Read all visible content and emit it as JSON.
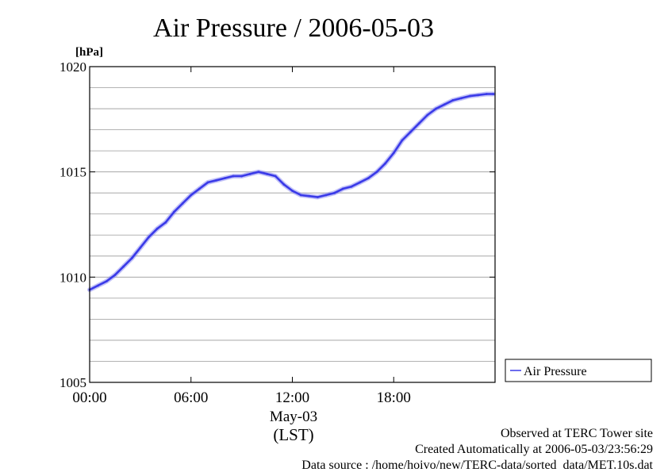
{
  "chart_data": {
    "type": "line",
    "title": "Air Pressure / 2006-05-03",
    "ylabel_unit": "[hPa]",
    "ylim": [
      1005,
      1020
    ],
    "yticks": [
      1005,
      1010,
      1015,
      1020
    ],
    "y_minor_step": 1,
    "xlim": [
      0,
      24
    ],
    "xticks": [
      0,
      6,
      12,
      18
    ],
    "xtick_labels": [
      "00:00",
      "06:00",
      "12:00",
      "18:00"
    ],
    "x_date_label": "May-03",
    "x_unit_label": "(LST)",
    "grid": true,
    "legend_position": "right",
    "series": [
      {
        "name": "Air Pressure",
        "color": "#3a3ae8",
        "x": [
          0,
          0.5,
          1,
          1.5,
          2,
          2.5,
          3,
          3.5,
          4,
          4.5,
          5,
          5.5,
          6,
          6.5,
          7,
          7.5,
          8,
          8.5,
          9,
          9.5,
          10,
          10.5,
          11,
          11.5,
          12,
          12.5,
          13,
          13.5,
          14,
          14.5,
          15,
          15.5,
          16,
          16.5,
          17,
          17.5,
          18,
          18.5,
          19,
          19.5,
          20,
          20.5,
          21,
          21.5,
          22,
          22.5,
          23,
          23.5,
          23.9
        ],
        "y": [
          1009.4,
          1009.6,
          1009.8,
          1010.1,
          1010.5,
          1010.9,
          1011.4,
          1011.9,
          1012.3,
          1012.6,
          1013.1,
          1013.5,
          1013.9,
          1014.2,
          1014.5,
          1014.6,
          1014.7,
          1014.8,
          1014.8,
          1014.9,
          1015.0,
          1014.9,
          1014.8,
          1014.4,
          1014.1,
          1013.9,
          1013.85,
          1013.8,
          1013.9,
          1014.0,
          1014.2,
          1014.3,
          1014.5,
          1014.7,
          1015.0,
          1015.4,
          1015.9,
          1016.5,
          1016.9,
          1017.3,
          1017.7,
          1018.0,
          1018.2,
          1018.4,
          1018.5,
          1018.6,
          1018.65,
          1018.7,
          1018.7
        ]
      }
    ]
  },
  "footer": {
    "line1": "Observed at TERC Tower site",
    "line2": "Created Automatically at 2006-05-03/23:56:29",
    "line3": "Data source : /home/hoivo/new/TERC-data/sorted  data/MET.10s.dat"
  }
}
